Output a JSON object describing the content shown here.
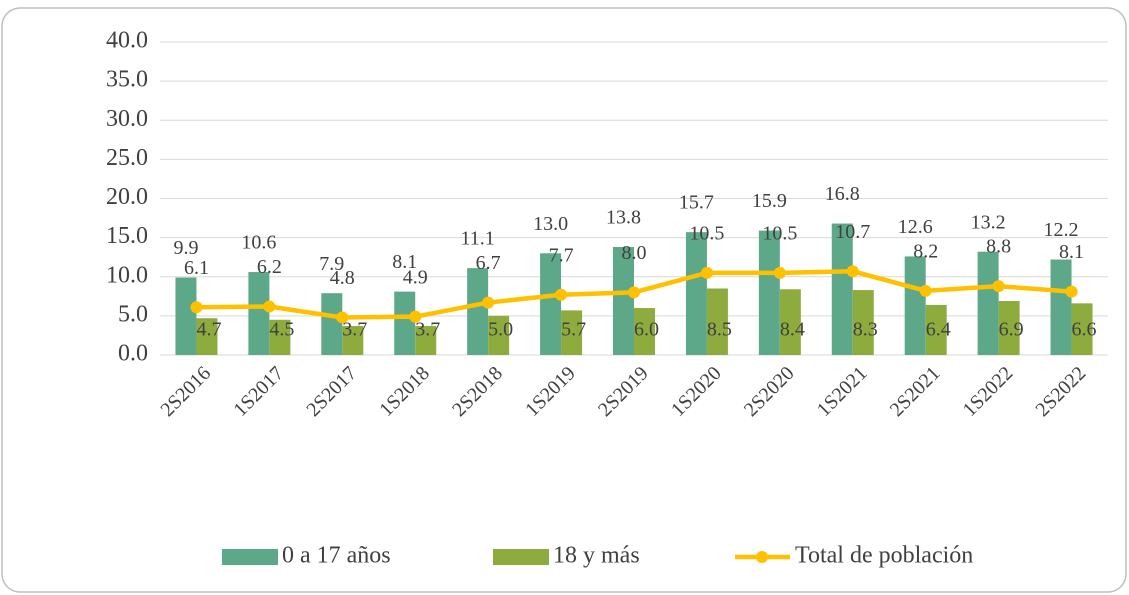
{
  "chart_data": {
    "type": "bar",
    "categories": [
      "2S2016",
      "1S2017",
      "2S2017",
      "1S2018",
      "2S2018",
      "1S2019",
      "2S2019",
      "1S2020",
      "2S2020",
      "1S2021",
      "2S2021",
      "1S2022",
      "2S2022"
    ],
    "series": [
      {
        "name": "0 a 17 años",
        "type": "bar",
        "color": "#5ea88a",
        "values": [
          9.9,
          10.6,
          7.9,
          8.1,
          11.1,
          13.0,
          13.8,
          15.7,
          15.9,
          16.8,
          12.6,
          13.2,
          12.2
        ],
        "value_labels": [
          "9.9",
          "10.6",
          "7.9",
          "8.1",
          "11.1",
          "13.0",
          "13.8",
          "15.7",
          "15.9",
          "16.8",
          "12.6",
          "13.2",
          "12.2"
        ]
      },
      {
        "name": "18 y más",
        "type": "bar",
        "color": "#8eab3e",
        "values": [
          4.7,
          4.5,
          3.7,
          3.7,
          5.0,
          5.7,
          6.0,
          8.5,
          8.4,
          8.3,
          6.4,
          6.9,
          6.6
        ],
        "value_labels": [
          "4.7",
          "4.5",
          "3.7",
          "3.7",
          "5.0",
          "5.7",
          "6.0",
          "8.5",
          "8.4",
          "8.3",
          "6.4",
          "6.9",
          "6.6"
        ]
      },
      {
        "name": "Total de población",
        "type": "line",
        "color": "#ffc000",
        "values": [
          6.1,
          6.2,
          4.8,
          4.9,
          6.7,
          7.7,
          8.0,
          10.5,
          10.5,
          10.7,
          8.2,
          8.8,
          8.1
        ],
        "value_labels": [
          "6.1",
          "6.2",
          "4.8",
          "4.9",
          "6.7",
          "7.7",
          "8.0",
          "10.5",
          "10.5",
          "10.7",
          "8.2",
          "8.8",
          "8.1"
        ]
      }
    ],
    "ylim": [
      0,
      40
    ],
    "yticks": [
      {
        "value": 0,
        "label": "0.0"
      },
      {
        "value": 5,
        "label": "5.0"
      },
      {
        "value": 10,
        "label": "10.0"
      },
      {
        "value": 15,
        "label": "15.0"
      },
      {
        "value": 20,
        "label": "20.0"
      },
      {
        "value": 25,
        "label": "25.0"
      },
      {
        "value": 30,
        "label": "30.0"
      },
      {
        "value": 35,
        "label": "35.0"
      },
      {
        "value": 40,
        "label": "40.0"
      }
    ],
    "grid": true,
    "legend": "bottom"
  }
}
